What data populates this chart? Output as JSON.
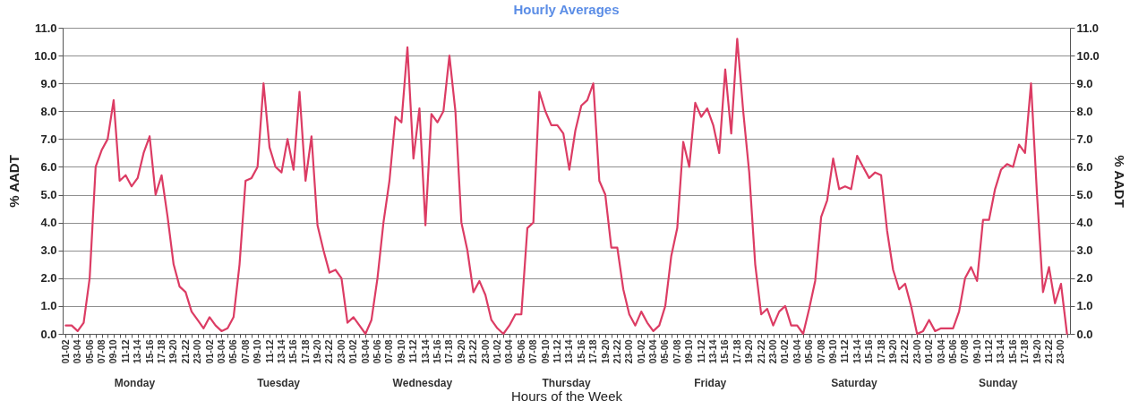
{
  "chart_data": {
    "type": "line",
    "title": "Hourly Averages",
    "xlabel": "Hours of the Week",
    "ylabel": "% AADT",
    "y2label": "% AADT",
    "categories": [
      "01-02",
      null,
      "03-04",
      null,
      "05-06",
      null,
      "07-08",
      null,
      "09-10",
      null,
      "11-12",
      null,
      "13-14",
      null,
      "15-16",
      null,
      "17-18",
      null,
      "19-20",
      null,
      "21-22",
      null,
      "23-00",
      null,
      "01-02",
      null,
      "03-04",
      null,
      "05-06",
      null,
      "07-08",
      null,
      "09-10",
      null,
      "11-12",
      null,
      "13-14",
      null,
      "15-16",
      null,
      "17-18",
      null,
      "19-20",
      null,
      "21-22",
      null,
      "23-00",
      null,
      "01-02",
      null,
      "03-04",
      null,
      "05-06",
      null,
      "07-08",
      null,
      "09-10",
      null,
      "11-12",
      null,
      "13-14",
      null,
      "15-16",
      null,
      "17-18",
      null,
      "19-20",
      null,
      "21-22",
      null,
      "23-00",
      null,
      "01-02",
      null,
      "03-04",
      null,
      "05-06",
      null,
      "07-08",
      null,
      "09-10",
      null,
      "11-12",
      null,
      "13-14",
      null,
      "15-16",
      null,
      "17-18",
      null,
      "19-20",
      null,
      "21-22",
      null,
      "23-00",
      null,
      "01-02",
      null,
      "03-04",
      null,
      "05-06",
      null,
      "07-08",
      null,
      "09-10",
      null,
      "11-12",
      null,
      "13-14",
      null,
      "15-16",
      null,
      "17-18",
      null,
      "19-20",
      null,
      "21-22",
      null,
      "23-00",
      null,
      "01-02",
      null,
      "03-04",
      null,
      "05-06",
      null,
      "07-08",
      null,
      "09-10",
      null,
      "11-12",
      null,
      "13-14",
      null,
      "15-16",
      null,
      "17-18",
      null,
      "19-20",
      null,
      "21-22",
      null,
      "23-00",
      null,
      "01-02",
      null,
      "03-04",
      null,
      "05-06",
      null,
      "07-08",
      null,
      "09-10",
      null,
      "11-12",
      null,
      "13-14",
      null,
      "15-16",
      null,
      "17-18",
      null,
      "19-20",
      null,
      "21-22",
      null,
      "23-00",
      null
    ],
    "series": [
      {
        "color": "#dc3c64",
        "values": [
          0.3,
          0.3,
          0.1,
          0.4,
          2.0,
          6.0,
          6.6,
          7.0,
          8.4,
          5.5,
          5.7,
          5.3,
          5.6,
          6.5,
          7.1,
          5.0,
          5.7,
          4.2,
          2.5,
          1.7,
          1.5,
          0.8,
          0.5,
          0.2,
          0.6,
          0.3,
          0.1,
          0.2,
          0.6,
          2.5,
          5.5,
          5.6,
          6.0,
          9.0,
          6.7,
          6.0,
          5.8,
          7.0,
          5.9,
          8.7,
          5.5,
          7.1,
          3.9,
          3.0,
          2.2,
          2.3,
          2.0,
          0.4,
          0.6,
          0.3,
          0.0,
          0.5,
          2.0,
          4.0,
          5.5,
          7.8,
          7.6,
          10.3,
          6.3,
          8.1,
          3.9,
          7.9,
          7.6,
          8.0,
          10.0,
          8.0,
          4.0,
          3.0,
          1.5,
          1.9,
          1.4,
          0.5,
          0.2,
          0.0,
          0.3,
          0.7,
          0.7,
          3.8,
          4.0,
          8.7,
          8.0,
          7.5,
          7.5,
          7.2,
          5.9,
          7.3,
          8.2,
          8.4,
          9.0,
          5.5,
          5.0,
          3.1,
          3.1,
          1.6,
          0.7,
          0.3,
          0.8,
          0.4,
          0.1,
          0.3,
          1.0,
          2.8,
          3.8,
          6.9,
          6.0,
          8.3,
          7.8,
          8.1,
          7.5,
          6.5,
          9.5,
          7.2,
          10.6,
          8.0,
          5.8,
          2.5,
          0.7,
          0.9,
          0.3,
          0.8,
          1.0,
          0.3,
          0.3,
          0.0,
          0.9,
          1.9,
          4.2,
          4.8,
          6.3,
          5.2,
          5.3,
          5.2,
          6.4,
          6.0,
          5.6,
          5.8,
          5.7,
          3.7,
          2.3,
          1.6,
          1.8,
          1.0,
          0.0,
          0.1,
          0.5,
          0.1,
          0.2,
          0.2,
          0.2,
          0.8,
          2.0,
          2.4,
          1.9,
          4.1,
          4.1,
          5.2,
          5.9,
          6.1,
          6.0,
          6.8,
          6.5,
          9.0,
          5.0,
          1.5,
          2.4,
          1.1,
          1.8,
          0.0
        ]
      }
    ],
    "ylim": [
      0,
      11
    ],
    "yticks": [
      {
        "value": 0,
        "label": "0.0"
      },
      {
        "value": 1,
        "label": "1.0"
      },
      {
        "value": 2,
        "label": "2.0"
      },
      {
        "value": 3,
        "label": "3.0"
      },
      {
        "value": 4,
        "label": "4.0"
      },
      {
        "value": 5,
        "label": "5.0"
      },
      {
        "value": 6,
        "label": "6.0"
      },
      {
        "value": 7,
        "label": "7.0"
      },
      {
        "value": 8,
        "label": "8.0"
      },
      {
        "value": 9,
        "label": "9.0"
      },
      {
        "value": 10,
        "label": "10.0"
      },
      {
        "value": 11,
        "label": "11.0"
      }
    ],
    "y2lim": [
      0,
      11
    ],
    "y2ticks": [
      {
        "value": 0,
        "label": "0.0"
      },
      {
        "value": 1,
        "label": "1.0"
      },
      {
        "value": 2,
        "label": "2.0"
      },
      {
        "value": 3,
        "label": "3.0"
      },
      {
        "value": 4,
        "label": "4.0"
      },
      {
        "value": 5,
        "label": "5.0"
      },
      {
        "value": 6,
        "label": "6.0"
      },
      {
        "value": 7,
        "label": "7.0"
      },
      {
        "value": 8,
        "label": "8.0"
      },
      {
        "value": 9,
        "label": "9.0"
      },
      {
        "value": 10,
        "label": "10.0"
      },
      {
        "value": 11,
        "label": "11.0"
      }
    ],
    "annotations": [
      "Monday",
      "Tuesday",
      "Wednesday",
      "Thursday",
      "Friday",
      "Saturday",
      "Sunday"
    ],
    "grid": "y",
    "marker": "none",
    "line_style": "solid"
  }
}
